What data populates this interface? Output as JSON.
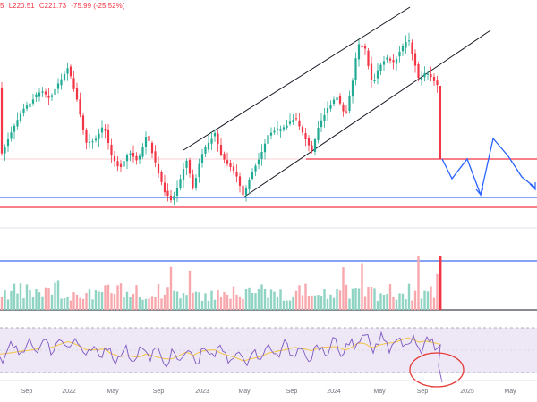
{
  "header": {
    "open": "5",
    "low": "L220.51",
    "close": "C221.73",
    "change": "-75.99 (-25.52%)"
  },
  "colors": {
    "up": "#22ab94",
    "down": "#f23645",
    "level": "#f23645",
    "support": "#3d6cf0",
    "projection": "#2962ff",
    "channel": "#131722",
    "rsi": "#7e57c2",
    "rsi_ma": "#f5c542",
    "rsi_band": "#ede7f6",
    "circle": "#e53935"
  },
  "chart_data": {
    "type": "candlestick",
    "x_axis": {
      "ticks": [
        "Sep",
        "2022",
        "May",
        "Sep",
        "2023",
        "May",
        "Sep",
        "2024",
        "May",
        "Sep",
        "2025",
        "May"
      ]
    },
    "price_path": [
      [
        0,
        176
      ],
      [
        12,
        150
      ],
      [
        24,
        125
      ],
      [
        36,
        112
      ],
      [
        46,
        100
      ],
      [
        56,
        110
      ],
      [
        66,
        92
      ],
      [
        76,
        75
      ],
      [
        86,
        112
      ],
      [
        96,
        160
      ],
      [
        106,
        158
      ],
      [
        116,
        140
      ],
      [
        124,
        172
      ],
      [
        134,
        190
      ],
      [
        144,
        170
      ],
      [
        154,
        182
      ],
      [
        164,
        150
      ],
      [
        174,
        184
      ],
      [
        184,
        215
      ],
      [
        192,
        226
      ],
      [
        200,
        205
      ],
      [
        208,
        178
      ],
      [
        216,
        212
      ],
      [
        224,
        178
      ],
      [
        232,
        160
      ],
      [
        240,
        150
      ],
      [
        248,
        176
      ],
      [
        256,
        186
      ],
      [
        264,
        196
      ],
      [
        272,
        220
      ],
      [
        280,
        196
      ],
      [
        290,
        178
      ],
      [
        300,
        150
      ],
      [
        310,
        145
      ],
      [
        320,
        140
      ],
      [
        330,
        132
      ],
      [
        340,
        152
      ],
      [
        348,
        170
      ],
      [
        356,
        140
      ],
      [
        366,
        122
      ],
      [
        376,
        108
      ],
      [
        386,
        130
      ],
      [
        394,
        90
      ],
      [
        400,
        48
      ],
      [
        408,
        55
      ],
      [
        416,
        96
      ],
      [
        424,
        74
      ],
      [
        432,
        65
      ],
      [
        440,
        70
      ],
      [
        448,
        56
      ],
      [
        456,
        42
      ],
      [
        462,
        65
      ],
      [
        468,
        90
      ],
      [
        476,
        80
      ],
      [
        482,
        86
      ],
      [
        488,
        95
      ],
      [
        492,
        98
      ]
    ],
    "last_bar_drop": {
      "from": 96,
      "to": 178
    },
    "channel_lower": {
      "from_x": 272,
      "to_x": 548
    },
    "channel_upper_anchor": {
      "from_x": 205,
      "to_x": 458
    },
    "horizontal_levels": [
      {
        "name": "breakdown",
        "price_y": 178,
        "color": "level"
      },
      {
        "name": "support",
        "price_y": 221,
        "color": "support"
      },
      {
        "name": "support-low",
        "price_y": 232,
        "color": "level"
      }
    ],
    "projection_path": [
      [
        494,
        178
      ],
      [
        505,
        200
      ],
      [
        522,
        178
      ],
      [
        537,
        218
      ],
      [
        551,
        155
      ],
      [
        568,
        175
      ],
      [
        583,
        198
      ],
      [
        598,
        210
      ]
    ],
    "volume_spike_index": 133,
    "rsi_last_dip": true
  }
}
